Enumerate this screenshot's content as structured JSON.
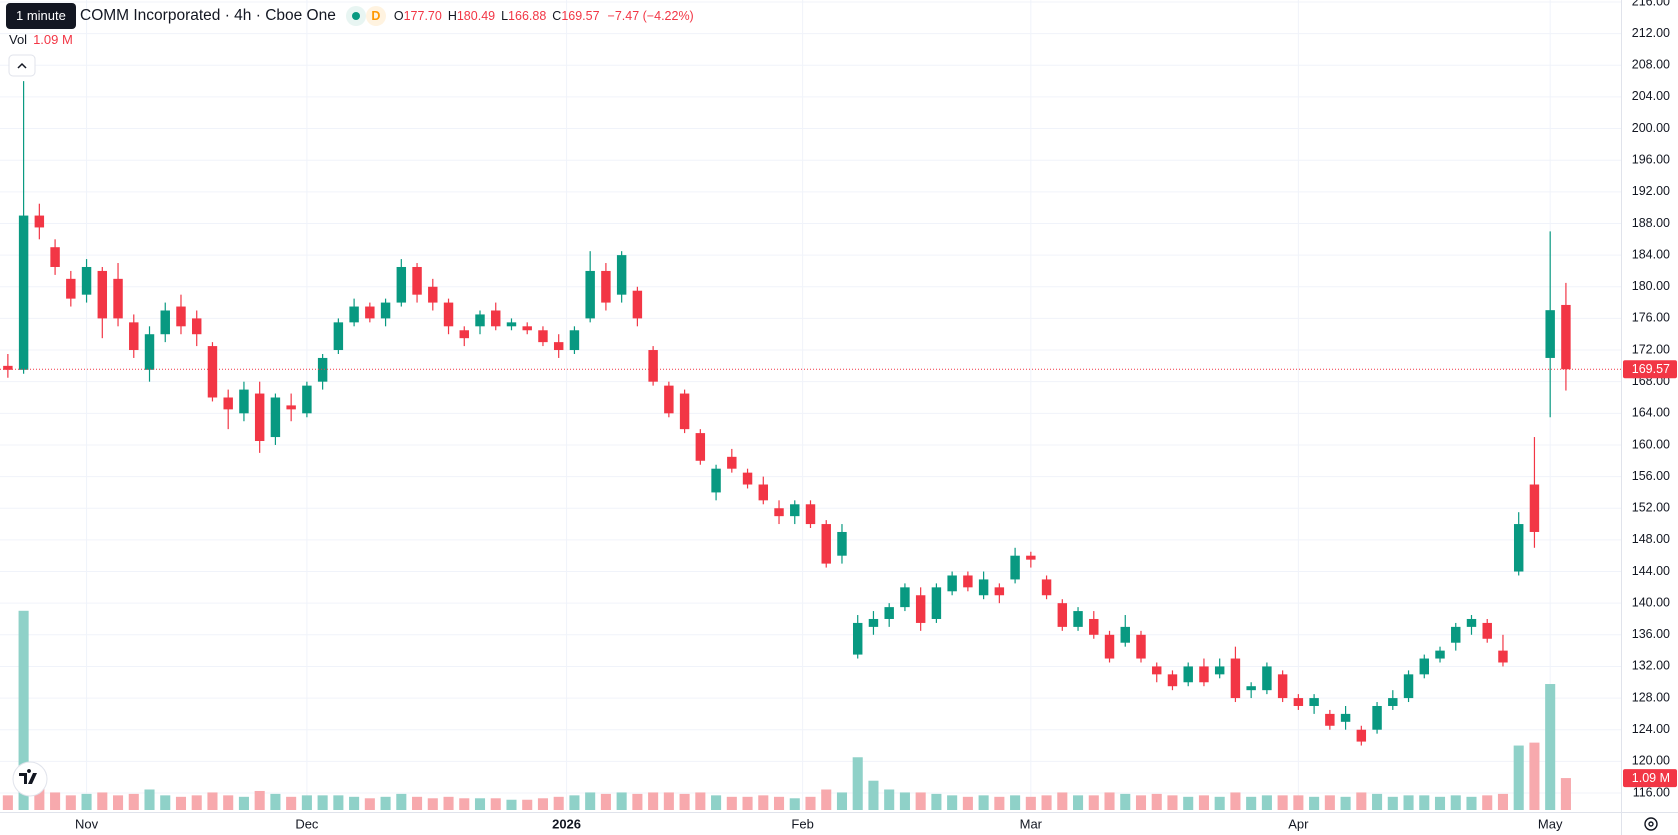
{
  "header": {
    "tooltip": "1 minute",
    "title": "COMM Incorporated · 4h · Cboe One",
    "badge": "D",
    "ohlc": [
      {
        "key": "O",
        "value": "177.70"
      },
      {
        "key": "H",
        "value": "180.49"
      },
      {
        "key": "L",
        "value": "166.88"
      },
      {
        "key": "C",
        "value": "169.57"
      }
    ],
    "change": "−7.47 (−4.22%)",
    "volume_name": "Vol",
    "volume_value": "1.09 M"
  },
  "chart_data": {
    "type": "candlestick",
    "up_color": "#089981",
    "down_color": "#f23645",
    "volume_up_color": "#8fd1c8",
    "volume_down_color": "#f7a9ad",
    "grid": true,
    "xlim": [
      -0.5,
      102.5
    ],
    "xticks": [
      {
        "value": 5,
        "label": "Nov"
      },
      {
        "value": 19,
        "label": "Dec"
      },
      {
        "value": 35.5,
        "label": "2026"
      },
      {
        "value": 50.5,
        "label": "Feb"
      },
      {
        "value": 65,
        "label": "Mar"
      },
      {
        "value": 82,
        "label": "Apr"
      },
      {
        "value": 98,
        "label": "May"
      }
    ],
    "ylim": [
      116,
      216
    ],
    "yticks": [
      {
        "value": 116,
        "label": "116.00"
      },
      {
        "value": 120,
        "label": "120.00"
      },
      {
        "value": 124,
        "label": "124.00"
      },
      {
        "value": 128,
        "label": "128.00"
      },
      {
        "value": 132,
        "label": "132.00"
      },
      {
        "value": 136,
        "label": "136.00"
      },
      {
        "value": 140,
        "label": "140.00"
      },
      {
        "value": 144,
        "label": "144.00"
      },
      {
        "value": 148,
        "label": "148.00"
      },
      {
        "value": 152,
        "label": "152.00"
      },
      {
        "value": 156,
        "label": "156.00"
      },
      {
        "value": 160,
        "label": "160.00"
      },
      {
        "value": 164,
        "label": "164.00"
      },
      {
        "value": 168,
        "label": "168.00"
      },
      {
        "value": 172,
        "label": "172.00"
      },
      {
        "value": 176,
        "label": "176.00"
      },
      {
        "value": 180,
        "label": "180.00"
      },
      {
        "value": 184,
        "label": "184.00"
      },
      {
        "value": 188,
        "label": "188.00"
      },
      {
        "value": 192,
        "label": "192.00"
      },
      {
        "value": 196,
        "label": "196.00"
      },
      {
        "value": 200,
        "label": "200.00"
      },
      {
        "value": 204,
        "label": "204.00"
      },
      {
        "value": 208,
        "label": "208.00"
      },
      {
        "value": 212,
        "label": "212.00"
      },
      {
        "value": 216,
        "label": "216.00"
      }
    ],
    "volume_lim": [
      0,
      27
    ],
    "price_tag": {
      "value": 169.57,
      "label": "169.57"
    },
    "volume_tag": {
      "value": 1.09,
      "label": "1.09 M"
    },
    "open": [
      170,
      169.5,
      189,
      185,
      181,
      179,
      182,
      181,
      175.5,
      169.5,
      174,
      177.5,
      176,
      172.5,
      166,
      164,
      166.5,
      161,
      165,
      164,
      168,
      172,
      175.5,
      177.5,
      176,
      178,
      182.5,
      180,
      178,
      174.5,
      175,
      177,
      175,
      175,
      174.5,
      173,
      172,
      176,
      182,
      179,
      179.5,
      172,
      167.5,
      166.5,
      161.5,
      154,
      158.5,
      156.5,
      155,
      152,
      151,
      152.5,
      150,
      146,
      133.5,
      137,
      138,
      139.5,
      141,
      138,
      141.5,
      143.5,
      141,
      142,
      143,
      146,
      143,
      140,
      137,
      138,
      136,
      135,
      136,
      132,
      131,
      130,
      132,
      131,
      133,
      129,
      129,
      131,
      128,
      127,
      126,
      125,
      124,
      124,
      127,
      128,
      131,
      133,
      135,
      137,
      137.5,
      134,
      144,
      155,
      171,
      177.7
    ],
    "high": [
      171.5,
      206,
      190.5,
      186,
      182,
      183.5,
      182.5,
      183,
      176.5,
      175,
      178,
      179,
      177,
      173,
      167,
      168,
      168,
      166.5,
      166.5,
      168,
      171.5,
      176,
      178.5,
      178,
      178.5,
      183.5,
      183,
      181,
      178.5,
      175,
      177,
      178,
      176,
      175.5,
      175,
      174,
      175,
      184.5,
      183,
      184.5,
      180,
      172.5,
      168,
      167,
      162,
      157.5,
      159.5,
      157,
      156,
      153,
      153,
      153,
      150.5,
      150,
      138.5,
      139,
      140,
      142.5,
      142,
      142.5,
      144,
      144,
      144,
      142.5,
      147,
      146.5,
      143.5,
      140.5,
      139.5,
      139,
      136.5,
      138.5,
      136.5,
      132.5,
      131.5,
      132.5,
      133,
      133,
      134.5,
      130,
      132.5,
      131.5,
      128.5,
      128.5,
      126.5,
      127,
      124.5,
      127.5,
      129,
      131.5,
      133.5,
      134.5,
      137.5,
      138.5,
      138,
      136,
      151.5,
      161,
      187,
      180.49
    ],
    "low": [
      168.5,
      169,
      186,
      181.5,
      177.5,
      178,
      173.5,
      175,
      171,
      168,
      173,
      174,
      172.5,
      165.5,
      162,
      163,
      159,
      160,
      163,
      163.5,
      167,
      171.5,
      175,
      175.5,
      175,
      177.5,
      178,
      177,
      174,
      172.5,
      174,
      174.5,
      174.5,
      174,
      172.5,
      171,
      171.5,
      175.5,
      177,
      178,
      175,
      167.5,
      163.5,
      161.5,
      157.5,
      153,
      156.5,
      154.5,
      152.5,
      150,
      150,
      149.5,
      144.5,
      145,
      133,
      136,
      137,
      139,
      136.5,
      137.5,
      141,
      141.5,
      140.5,
      140,
      142.5,
      144.5,
      140.5,
      136.5,
      136.5,
      135.5,
      132.5,
      134.5,
      132.5,
      130,
      129,
      129.5,
      129.5,
      130.5,
      127.5,
      128,
      128.5,
      127.5,
      126.5,
      126,
      124,
      124,
      122,
      123.5,
      126.5,
      127.5,
      130.5,
      132.5,
      134,
      136,
      135,
      132,
      143.5,
      147,
      163.5,
      166.88
    ],
    "close": [
      169.5,
      189,
      187.5,
      182.5,
      178.5,
      182.5,
      176,
      176,
      172,
      174,
      177,
      175,
      174,
      166,
      164.5,
      167,
      160.5,
      166,
      164.5,
      167.5,
      171,
      175.5,
      177.5,
      176,
      178,
      182.5,
      179,
      178,
      175,
      173.5,
      176.5,
      175,
      175.5,
      174.5,
      173,
      172,
      174.5,
      182,
      178,
      184,
      176,
      168,
      164,
      162,
      158,
      157,
      157,
      155,
      153,
      151,
      152.5,
      150,
      145,
      149,
      137.5,
      138,
      139.5,
      142,
      137.5,
      142,
      143.5,
      142,
      143,
      141,
      146,
      145.5,
      141,
      137,
      139,
      136,
      133,
      137,
      133,
      131,
      129.5,
      132,
      130,
      132,
      128,
      129.5,
      132,
      128,
      127,
      128,
      124.5,
      126,
      122.5,
      127,
      128,
      131,
      133,
      134,
      137,
      138,
      135.5,
      132.5,
      150,
      149,
      177.04,
      169.57
    ],
    "volume": [
      0.5,
      6.8,
      0.9,
      0.6,
      0.5,
      0.55,
      0.6,
      0.5,
      0.55,
      0.7,
      0.5,
      0.45,
      0.5,
      0.6,
      0.5,
      0.45,
      0.65,
      0.55,
      0.45,
      0.5,
      0.5,
      0.5,
      0.45,
      0.4,
      0.45,
      0.55,
      0.45,
      0.4,
      0.45,
      0.4,
      0.4,
      0.4,
      0.35,
      0.35,
      0.4,
      0.45,
      0.5,
      0.6,
      0.55,
      0.6,
      0.55,
      0.6,
      0.6,
      0.55,
      0.6,
      0.5,
      0.45,
      0.45,
      0.5,
      0.45,
      0.4,
      0.45,
      0.7,
      0.6,
      1.8,
      1.0,
      0.7,
      0.6,
      0.6,
      0.55,
      0.5,
      0.45,
      0.5,
      0.45,
      0.5,
      0.45,
      0.5,
      0.6,
      0.5,
      0.5,
      0.6,
      0.55,
      0.5,
      0.55,
      0.5,
      0.45,
      0.5,
      0.45,
      0.6,
      0.45,
      0.5,
      0.5,
      0.5,
      0.45,
      0.5,
      0.45,
      0.6,
      0.55,
      0.45,
      0.5,
      0.5,
      0.45,
      0.5,
      0.45,
      0.5,
      0.55,
      2.2,
      2.3,
      4.3,
      1.09
    ]
  }
}
